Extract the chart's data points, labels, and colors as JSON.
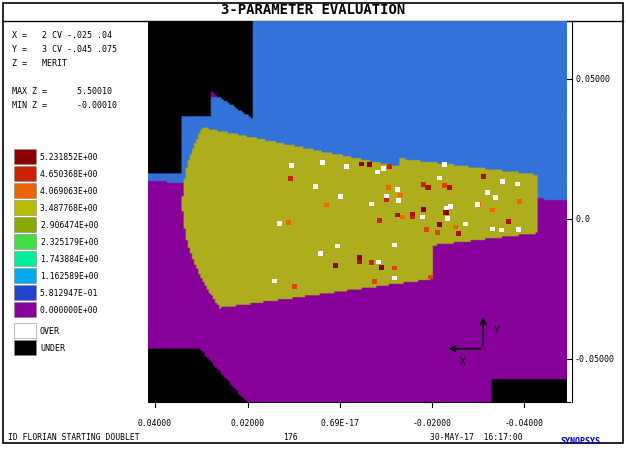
{
  "title": "3-PARAMETER EVALUATION",
  "info_lines": [
    "X =   2 CV -.025 .04",
    "Y =   3 CV -.045 .075",
    "Z =   MERIT"
  ],
  "max_z_label": "MAX Z =      5.50010",
  "min_z_label": "MIN Z =      -0.00010",
  "legend_colors": [
    "#8B0000",
    "#CC2200",
    "#EE6600",
    "#BBBB00",
    "#88AA00",
    "#44DD44",
    "#00EE99",
    "#00AAEE",
    "#2244CC",
    "#880099"
  ],
  "legend_labels": [
    "5.231852E+00",
    "4.650368E+00",
    "4.069063E+00",
    "3.487768E+00",
    "2.906474E+00",
    "2.325179E+00",
    "1.743884E+00",
    "1.162589E+00",
    "5.812947E-01",
    "0.000000E+00"
  ],
  "y_tick_labels": [
    "0.05000",
    "0.0",
    "-0.05000"
  ],
  "x_tick_labels": [
    "0.04000",
    "0.02000",
    "0.69E-17",
    "-0.02000",
    "-0.04000"
  ],
  "bottom_left": "ID FLORIAN STARTING DOUBLET",
  "bottom_center": "176",
  "bottom_right": "30-MAY-17  16:17:00",
  "synopsys_color": "#0000CC",
  "bg_color": "#FFFFFF",
  "color_purple": [
    0.533,
    0.0,
    0.6
  ],
  "color_blue": [
    0.2,
    0.45,
    0.85
  ],
  "color_olive": [
    0.68,
    0.68,
    0.12
  ],
  "color_black": [
    0.0,
    0.0,
    0.0
  ]
}
